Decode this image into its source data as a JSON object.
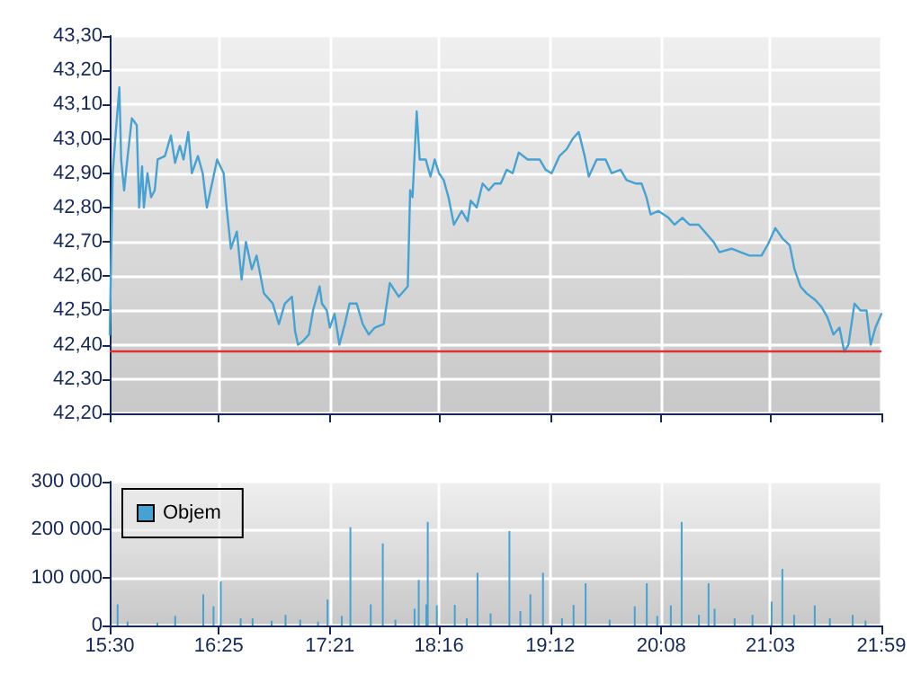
{
  "chart_data": [
    {
      "type": "line",
      "xlim": [
        15.5,
        21.9833
      ],
      "ylim": [
        42.2,
        43.3
      ],
      "xticks": [
        {
          "value": 15.5,
          "label": null
        },
        {
          "value": 16.4167,
          "label": null
        },
        {
          "value": 17.35,
          "label": null
        },
        {
          "value": 18.2667,
          "label": null
        },
        {
          "value": 19.2,
          "label": null
        },
        {
          "value": 20.1333,
          "label": null
        },
        {
          "value": 21.05,
          "label": null
        },
        {
          "value": 21.9833,
          "label": null
        }
      ],
      "yticks": [
        {
          "value": 42.2,
          "label": "42,20"
        },
        {
          "value": 42.3,
          "label": "42,30"
        },
        {
          "value": 42.4,
          "label": "42,40"
        },
        {
          "value": 42.5,
          "label": "42,50"
        },
        {
          "value": 42.6,
          "label": "42,60"
        },
        {
          "value": 42.7,
          "label": "42,70"
        },
        {
          "value": 42.8,
          "label": "42,80"
        },
        {
          "value": 42.9,
          "label": "42,90"
        },
        {
          "value": 43.0,
          "label": "43,00"
        },
        {
          "value": 43.1,
          "label": "43,10"
        },
        {
          "value": 43.2,
          "label": "43,20"
        },
        {
          "value": 43.3,
          "label": "43,30"
        }
      ],
      "tick_labels": "y",
      "grid": true,
      "legend": false,
      "marker": "none",
      "line_style": "solid",
      "ref_lines": [
        {
          "axis": "y",
          "value": 42.38,
          "color": "#e03030"
        }
      ],
      "series": [
        {
          "color": "#45a2d2",
          "x": [
            15.5,
            15.525,
            15.56,
            15.581,
            15.596,
            15.621,
            15.651,
            15.686,
            15.727,
            15.747,
            15.772,
            15.787,
            15.817,
            15.848,
            15.878,
            15.903,
            15.964,
            16.014,
            16.049,
            16.089,
            16.12,
            16.16,
            16.19,
            16.241,
            16.281,
            16.316,
            16.366,
            16.402,
            16.457,
            16.482,
            16.518,
            16.568,
            16.608,
            16.644,
            16.694,
            16.734,
            16.795,
            16.87,
            16.921,
            16.971,
            17.031,
            17.057,
            17.082,
            17.122,
            17.173,
            17.208,
            17.263,
            17.283,
            17.324,
            17.349,
            17.389,
            17.429,
            17.475,
            17.515,
            17.575,
            17.626,
            17.676,
            17.727,
            17.802,
            17.853,
            17.928,
            18.004,
            18.024,
            18.044,
            18.079,
            18.104,
            18.155,
            18.195,
            18.23,
            18.266,
            18.306,
            18.346,
            18.392,
            18.457,
            18.507,
            18.533,
            18.583,
            18.633,
            18.684,
            18.734,
            18.785,
            18.835,
            18.885,
            18.936,
            19.011,
            19.112,
            19.162,
            19.213,
            19.278,
            19.339,
            19.389,
            19.44,
            19.49,
            19.525,
            19.591,
            19.666,
            19.717,
            19.792,
            19.842,
            19.918,
            19.968,
            20.009,
            20.044,
            20.109,
            20.195,
            20.245,
            20.311,
            20.371,
            20.447,
            20.522,
            20.573,
            20.623,
            20.724,
            20.8,
            20.875,
            20.976,
            21.026,
            21.092,
            21.152,
            21.213,
            21.253,
            21.303,
            21.354,
            21.429,
            21.48,
            21.53,
            21.58,
            21.631,
            21.671,
            21.706,
            21.757,
            21.807,
            21.858,
            21.893,
            21.933,
            21.983
          ],
          "values": [
            42.43,
            42.9,
            43.06,
            43.15,
            42.94,
            42.85,
            42.95,
            43.06,
            43.04,
            42.8,
            42.92,
            42.8,
            42.9,
            42.83,
            42.85,
            42.94,
            42.95,
            43.01,
            42.93,
            42.98,
            42.94,
            43.02,
            42.9,
            42.95,
            42.9,
            42.8,
            42.88,
            42.94,
            42.9,
            42.8,
            42.68,
            42.73,
            42.59,
            42.7,
            42.62,
            42.66,
            42.55,
            42.52,
            42.46,
            42.52,
            42.54,
            42.44,
            42.4,
            42.41,
            42.43,
            42.5,
            42.57,
            42.52,
            42.5,
            42.45,
            42.49,
            42.4,
            42.46,
            42.52,
            42.52,
            42.46,
            42.43,
            42.45,
            42.46,
            42.58,
            42.54,
            42.57,
            42.85,
            42.83,
            43.08,
            42.94,
            42.94,
            42.89,
            42.94,
            42.9,
            42.88,
            42.83,
            42.75,
            42.79,
            42.76,
            42.82,
            42.8,
            42.87,
            42.85,
            42.87,
            42.87,
            42.91,
            42.9,
            42.96,
            42.94,
            42.94,
            42.91,
            42.9,
            42.95,
            42.97,
            43.0,
            43.02,
            42.95,
            42.89,
            42.94,
            42.94,
            42.9,
            42.91,
            42.88,
            42.87,
            42.87,
            42.83,
            42.78,
            42.79,
            42.77,
            42.75,
            42.77,
            42.75,
            42.75,
            42.72,
            42.7,
            42.67,
            42.68,
            42.67,
            42.66,
            42.66,
            42.69,
            42.74,
            42.71,
            42.69,
            42.62,
            42.57,
            42.55,
            42.53,
            42.51,
            42.48,
            42.43,
            42.45,
            42.38,
            42.4,
            42.52,
            42.5,
            42.5,
            42.4,
            42.45,
            42.49
          ]
        }
      ]
    },
    {
      "type": "bar",
      "xlim": [
        15.5,
        21.9833
      ],
      "ylim": [
        0,
        300000
      ],
      "xticks": [
        {
          "value": 15.5,
          "label": "15:30"
        },
        {
          "value": 16.4167,
          "label": "16:25"
        },
        {
          "value": 17.35,
          "label": "17:21"
        },
        {
          "value": 18.2667,
          "label": "18:16"
        },
        {
          "value": 19.2,
          "label": "19:12"
        },
        {
          "value": 20.1333,
          "label": "20:08"
        },
        {
          "value": 21.05,
          "label": "21:03"
        },
        {
          "value": 21.9833,
          "label": "21:59"
        }
      ],
      "yticks": [
        0,
        {
          "value": 100000,
          "label": "100 000"
        },
        {
          "value": 200000,
          "label": "200 000"
        },
        {
          "value": 300000,
          "label": "300 000"
        }
      ],
      "grid": true,
      "legend": "top left",
      "series": [
        {
          "name": "Objem",
          "color": "#45a2d2",
          "x": [
            15.566,
            15.65,
            15.9,
            16.05,
            16.286,
            16.372,
            16.433,
            16.6,
            16.7,
            16.86,
            16.977,
            17.1,
            17.25,
            17.33,
            17.45,
            17.522,
            17.693,
            17.794,
            17.9,
            18.061,
            18.096,
            18.16,
            18.172,
            18.248,
            18.399,
            18.5,
            18.59,
            18.7,
            18.858,
            18.95,
            19.034,
            19.14,
            19.3,
            19.397,
            19.498,
            19.7,
            19.911,
            20.012,
            20.1,
            20.214,
            20.305,
            20.45,
            20.531,
            20.582,
            20.75,
            20.9,
            21.061,
            21.151,
            21.25,
            21.423,
            21.55,
            21.742,
            21.85
          ],
          "values": [
            44000,
            8000,
            6000,
            20000,
            65000,
            40000,
            92000,
            15000,
            15000,
            10000,
            22000,
            12000,
            8000,
            54000,
            20000,
            205000,
            44000,
            171000,
            12000,
            35000,
            95000,
            44000,
            216000,
            42000,
            43000,
            15000,
            110000,
            25000,
            197000,
            30000,
            65000,
            110000,
            15000,
            43000,
            88000,
            12000,
            40000,
            88000,
            20000,
            42000,
            216000,
            22000,
            88000,
            35000,
            15000,
            22000,
            50000,
            118000,
            22000,
            42000,
            15000,
            22000,
            10000
          ]
        }
      ]
    }
  ]
}
